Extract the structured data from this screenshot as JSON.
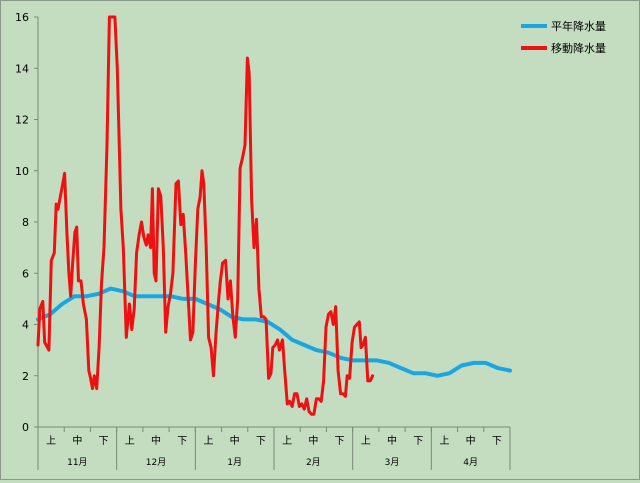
{
  "chart_data": {
    "type": "line",
    "ylim": [
      0,
      16
    ],
    "yticks": [
      0,
      2,
      4,
      6,
      8,
      10,
      12,
      14,
      16
    ],
    "grid": false,
    "legend_position": "top-right",
    "x_sub_labels": [
      "上",
      "中",
      "下"
    ],
    "x_months": [
      "11月",
      "12月",
      "1月",
      "2月",
      "3月",
      "4月"
    ],
    "series": [
      {
        "name": "平年降水量",
        "color": "#1aa6e0",
        "points": [
          [
            0,
            4.2
          ],
          [
            1,
            4.4
          ],
          [
            2,
            4.8
          ],
          [
            3,
            5.1
          ],
          [
            4,
            5.1
          ],
          [
            5,
            5.2
          ],
          [
            6,
            5.4
          ],
          [
            7,
            5.3
          ],
          [
            8,
            5.1
          ],
          [
            9,
            5.1
          ],
          [
            10,
            5.1
          ],
          [
            11,
            5.1
          ],
          [
            12,
            5.0
          ],
          [
            13,
            5.0
          ],
          [
            14,
            4.8
          ],
          [
            15,
            4.6
          ],
          [
            16,
            4.3
          ],
          [
            17,
            4.2
          ],
          [
            18,
            4.2
          ],
          [
            19,
            4.1
          ],
          [
            20,
            3.8
          ],
          [
            21,
            3.4
          ],
          [
            22,
            3.2
          ],
          [
            23,
            3.0
          ],
          [
            24,
            2.9
          ],
          [
            25,
            2.7
          ],
          [
            26,
            2.6
          ],
          [
            27,
            2.6
          ],
          [
            28,
            2.6
          ],
          [
            29,
            2.5
          ],
          [
            30,
            2.3
          ],
          [
            31,
            2.1
          ],
          [
            32,
            2.1
          ],
          [
            33,
            2.0
          ],
          [
            34,
            2.1
          ],
          [
            35,
            2.4
          ],
          [
            36,
            2.5
          ],
          [
            37,
            2.5
          ],
          [
            38,
            2.3
          ],
          [
            39,
            2.2
          ]
        ]
      },
      {
        "name": "移動降水量",
        "color": "#ee1111",
        "points": [
          [
            0.0,
            3.2
          ],
          [
            0.15,
            4.6
          ],
          [
            0.4,
            4.9
          ],
          [
            0.55,
            3.3
          ],
          [
            0.9,
            3.0
          ],
          [
            1.1,
            6.5
          ],
          [
            1.35,
            6.8
          ],
          [
            1.5,
            8.7
          ],
          [
            1.65,
            8.5
          ],
          [
            1.85,
            9.0
          ],
          [
            2.05,
            9.5
          ],
          [
            2.2,
            9.9
          ],
          [
            2.4,
            7.5
          ],
          [
            2.55,
            6.0
          ],
          [
            2.7,
            5.1
          ],
          [
            2.85,
            6.3
          ],
          [
            3.05,
            7.6
          ],
          [
            3.2,
            7.8
          ],
          [
            3.35,
            5.7
          ],
          [
            3.55,
            5.7
          ],
          [
            3.75,
            4.8
          ],
          [
            4.0,
            4.2
          ],
          [
            4.2,
            2.2
          ],
          [
            4.35,
            1.9
          ],
          [
            4.5,
            1.5
          ],
          [
            4.65,
            2.0
          ],
          [
            4.85,
            1.5
          ],
          [
            5.05,
            3.1
          ],
          [
            5.25,
            5.6
          ],
          [
            5.45,
            7.0
          ],
          [
            5.7,
            11.0
          ],
          [
            5.9,
            16.0
          ],
          [
            6.1,
            16.0
          ],
          [
            6.35,
            16.0
          ],
          [
            6.55,
            14.0
          ],
          [
            6.85,
            8.5
          ],
          [
            7.05,
            7.0
          ],
          [
            7.3,
            3.5
          ],
          [
            7.55,
            4.8
          ],
          [
            7.75,
            3.8
          ],
          [
            7.95,
            4.6
          ],
          [
            8.15,
            6.8
          ],
          [
            8.35,
            7.5
          ],
          [
            8.55,
            8.0
          ],
          [
            8.75,
            7.4
          ],
          [
            8.95,
            7.1
          ],
          [
            9.1,
            7.5
          ],
          [
            9.3,
            7.0
          ],
          [
            9.45,
            9.3
          ],
          [
            9.6,
            6.0
          ],
          [
            9.75,
            5.7
          ],
          [
            9.95,
            9.3
          ],
          [
            10.15,
            9.0
          ],
          [
            10.35,
            7.0
          ],
          [
            10.55,
            3.7
          ],
          [
            10.75,
            4.7
          ],
          [
            10.95,
            5.2
          ],
          [
            11.15,
            6.0
          ],
          [
            11.4,
            9.5
          ],
          [
            11.6,
            9.6
          ],
          [
            11.8,
            7.9
          ],
          [
            12.0,
            8.3
          ],
          [
            12.2,
            6.8
          ],
          [
            12.4,
            5.1
          ],
          [
            12.6,
            3.4
          ],
          [
            12.8,
            3.7
          ],
          [
            13.0,
            6.3
          ],
          [
            13.2,
            8.5
          ],
          [
            13.4,
            9.0
          ],
          [
            13.55,
            10.0
          ],
          [
            13.7,
            9.5
          ],
          [
            13.9,
            7.0
          ],
          [
            14.1,
            3.5
          ],
          [
            14.3,
            3.1
          ],
          [
            14.5,
            2.0
          ],
          [
            14.7,
            3.6
          ],
          [
            14.9,
            4.8
          ],
          [
            15.05,
            5.6
          ],
          [
            15.25,
            6.4
          ],
          [
            15.5,
            6.5
          ],
          [
            15.7,
            5.0
          ],
          [
            15.9,
            5.7
          ],
          [
            16.1,
            4.3
          ],
          [
            16.3,
            3.5
          ],
          [
            16.5,
            5.0
          ],
          [
            16.7,
            10.1
          ],
          [
            16.9,
            10.5
          ],
          [
            17.1,
            11.0
          ],
          [
            17.3,
            14.4
          ],
          [
            17.45,
            13.8
          ],
          [
            17.65,
            8.9
          ],
          [
            17.85,
            7.0
          ],
          [
            18.05,
            8.1
          ],
          [
            18.25,
            5.4
          ],
          [
            18.45,
            4.3
          ],
          [
            18.65,
            4.3
          ],
          [
            18.85,
            4.2
          ],
          [
            19.05,
            1.9
          ],
          [
            19.25,
            2.1
          ],
          [
            19.4,
            3.1
          ],
          [
            19.6,
            3.2
          ],
          [
            19.8,
            3.4
          ],
          [
            19.95,
            3.0
          ],
          [
            20.2,
            3.4
          ],
          [
            20.4,
            2.1
          ],
          [
            20.6,
            0.9
          ],
          [
            20.8,
            1.0
          ],
          [
            21.0,
            0.8
          ],
          [
            21.2,
            1.3
          ],
          [
            21.4,
            1.3
          ],
          [
            21.6,
            0.8
          ],
          [
            21.8,
            0.9
          ],
          [
            22.0,
            0.7
          ],
          [
            22.2,
            1.1
          ],
          [
            22.4,
            0.6
          ],
          [
            22.6,
            0.5
          ],
          [
            22.8,
            0.5
          ],
          [
            23.0,
            1.1
          ],
          [
            23.2,
            1.1
          ],
          [
            23.4,
            1.0
          ],
          [
            23.6,
            1.8
          ],
          [
            23.8,
            3.9
          ],
          [
            24.0,
            4.4
          ],
          [
            24.2,
            4.5
          ],
          [
            24.4,
            4.0
          ],
          [
            24.6,
            4.7
          ],
          [
            24.8,
            2.2
          ],
          [
            25.0,
            1.3
          ],
          [
            25.2,
            1.3
          ],
          [
            25.4,
            1.2
          ],
          [
            25.55,
            2.0
          ],
          [
            25.75,
            1.9
          ],
          [
            25.95,
            3.3
          ],
          [
            26.15,
            3.9
          ],
          [
            26.35,
            4.0
          ],
          [
            26.55,
            4.1
          ],
          [
            26.7,
            3.1
          ],
          [
            26.85,
            3.2
          ],
          [
            27.05,
            3.5
          ],
          [
            27.25,
            1.8
          ],
          [
            27.45,
            1.8
          ],
          [
            27.65,
            2.0
          ]
        ]
      }
    ]
  }
}
